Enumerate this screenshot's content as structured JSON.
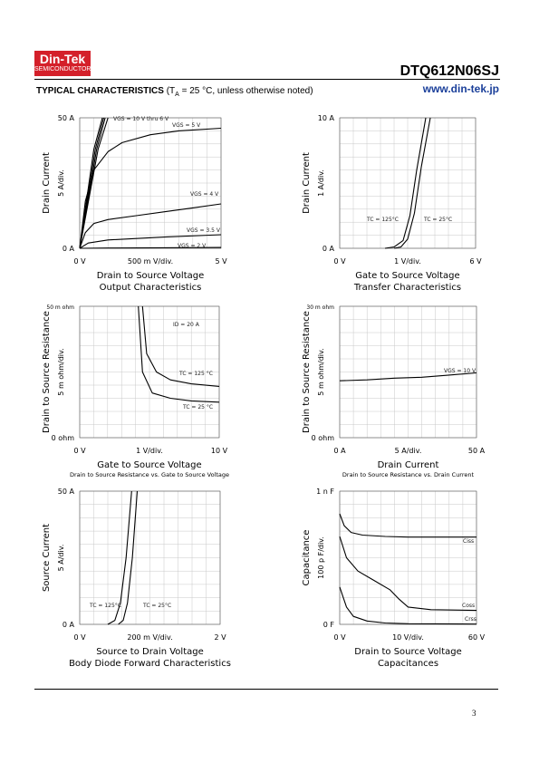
{
  "header": {
    "logo_line1": "Din-Tek",
    "logo_line2": "SEMICONDUCTOR",
    "part_number": "DTQ612N06SJ",
    "typ_bold": "TYPICAL CHARACTERISTICS",
    "typ_cond_pre": "(T",
    "typ_cond_sub": "A",
    "typ_cond_post": " = 25 °C, unless otherwise noted)",
    "website": "www.din-tek.jp"
  },
  "footer": {
    "page_number": "3"
  },
  "chart_data": [
    {
      "type": "line",
      "title": "Drain to Source Voltage",
      "subtitle": "Output Characteristics",
      "xlabel": "500 m V/div.",
      "ylabel": "Drain Current",
      "ydiv": "5 A/div.",
      "x_min_label": "0 V",
      "x_max_label": "5 V",
      "y_min_label": "0 A",
      "y_max_label": "50 A",
      "xlim": [
        0,
        5
      ],
      "ylim": [
        0,
        50
      ],
      "grid": true,
      "series": [
        {
          "name": "VGS = 10 V thru 6 V",
          "x": [
            0,
            0.5,
            0.8
          ],
          "y": [
            0,
            38,
            50
          ]
        },
        {
          "name": "",
          "x": [
            0,
            0.55,
            0.85
          ],
          "y": [
            0,
            38,
            50
          ]
        },
        {
          "name": "",
          "x": [
            0,
            0.6,
            0.9
          ],
          "y": [
            0,
            38,
            50
          ]
        },
        {
          "name": "",
          "x": [
            0,
            0.65,
            1.0
          ],
          "y": [
            0,
            38,
            50
          ]
        },
        {
          "name": "VGS = 5 V",
          "x": [
            0,
            0.2,
            0.5,
            1.0,
            1.5,
            2.5,
            3.5,
            5
          ],
          "y": [
            0,
            18,
            30,
            37,
            40.5,
            43.5,
            45,
            46
          ]
        },
        {
          "name": "VGS = 4 V",
          "x": [
            0,
            0.2,
            0.5,
            1.0,
            2.0,
            3.0,
            4.0,
            5
          ],
          "y": [
            0,
            6,
            9.5,
            11,
            12.5,
            14,
            15.5,
            17
          ]
        },
        {
          "name": "VGS = 3.5 V",
          "x": [
            0,
            0.3,
            1.0,
            3.0,
            5
          ],
          "y": [
            0,
            2,
            3.2,
            4.3,
            5.2
          ]
        },
        {
          "name": "VGS = 2 V",
          "x": [
            0,
            1.0,
            3.0,
            5
          ],
          "y": [
            0,
            0.1,
            0.2,
            0.3
          ]
        }
      ],
      "annotations": [
        "VGS = 10 V thru 6 V",
        "VGS = 5 V",
        "VGS = 4 V",
        "VGS = 3.5 V",
        "VGS = 2 V"
      ]
    },
    {
      "type": "line",
      "title": "Gate to Source Voltage",
      "subtitle": "Transfer Characteristics",
      "xlabel": "1 V/div.",
      "ylabel": "Drain Current",
      "ydiv": "1 A/div.",
      "x_min_label": "0 V",
      "x_max_label": "6 V",
      "y_min_label": "0 A",
      "y_max_label": "10 A",
      "xlim": [
        0,
        6
      ],
      "ylim": [
        0,
        10
      ],
      "grid": true,
      "series": [
        {
          "name": "TC = 125°C",
          "x": [
            2.0,
            2.4,
            2.8,
            3.1,
            3.4,
            3.8
          ],
          "y": [
            0,
            0.1,
            0.6,
            2.5,
            6,
            10
          ]
        },
        {
          "name": "TC = 25°C",
          "x": [
            2.4,
            2.7,
            3.0,
            3.3,
            3.6,
            4.0
          ],
          "y": [
            0,
            0.1,
            0.7,
            2.7,
            6.2,
            10
          ]
        }
      ],
      "annotations": [
        "TC = 125°C",
        "TC = 25°C"
      ]
    },
    {
      "type": "line",
      "title": "Gate to Source Voltage",
      "subtitle": "Drain to Source Resistance vs. Gate to Source Voltage",
      "xlabel": "1 V/div.",
      "ylabel": "Drain to Source Resistance",
      "ydiv": "5 m ohm/div.",
      "x_min_label": "0 V",
      "x_max_label": "10 V",
      "y_min_label": "0 ohm",
      "y_max_label": "50 m ohm",
      "xlim": [
        0,
        10
      ],
      "ylim": [
        0,
        50
      ],
      "grid": true,
      "series": [
        {
          "name": "TC = 125 °C",
          "x": [
            4.5,
            4.8,
            5.5,
            6.5,
            8,
            10
          ],
          "y": [
            50,
            32,
            25,
            22,
            20.5,
            19.5
          ]
        },
        {
          "name": "TC = 25 °C",
          "x": [
            4.2,
            4.5,
            5.2,
            6.5,
            8,
            10
          ],
          "y": [
            50,
            25,
            17,
            15,
            14,
            13.5
          ]
        }
      ],
      "annotations": [
        "ID = 20 A",
        "TC = 125 °C",
        "TC = 25 °C"
      ]
    },
    {
      "type": "line",
      "title": "Drain Current",
      "subtitle": "Drain to Source Resistance vs. Drain Current",
      "xlabel": "5 A/div.",
      "ylabel": "Drain to Source Resistance",
      "ydiv": "5 m ohm/div.",
      "x_min_label": "0 A",
      "x_max_label": "50 A",
      "y_min_label": "0 ohm",
      "y_max_label": "30 m ohm",
      "xlim": [
        0,
        50
      ],
      "ylim": [
        0,
        30
      ],
      "grid": true,
      "series": [
        {
          "name": "VGS = 10 V",
          "x": [
            0,
            10,
            20,
            30,
            40,
            50
          ],
          "y": [
            13,
            13.2,
            13.6,
            13.8,
            14.3,
            14.8
          ]
        }
      ],
      "annotations": [
        "VGS = 10 V"
      ]
    },
    {
      "type": "line",
      "title": "Source to Drain Voltage",
      "subtitle": "Body Diode Forward Characteristics",
      "xlabel": "200 m V/div.",
      "ylabel": "Source Current",
      "ydiv": "5 A/div.",
      "x_min_label": "0 V",
      "x_max_label": "2 V",
      "y_min_label": "0 A",
      "y_max_label": "50 A",
      "xlim": [
        0,
        2
      ],
      "ylim": [
        0,
        50
      ],
      "grid": true,
      "series": [
        {
          "name": "TC = 125°C",
          "x": [
            0.4,
            0.5,
            0.58,
            0.66,
            0.74
          ],
          "y": [
            0,
            1.5,
            8,
            25,
            50
          ]
        },
        {
          "name": "TC = 25°C",
          "x": [
            0.55,
            0.62,
            0.68,
            0.75,
            0.82
          ],
          "y": [
            0,
            1.5,
            8,
            25,
            50
          ]
        }
      ],
      "annotations": [
        "TC = 125°C",
        "TC = 25°C"
      ]
    },
    {
      "type": "line",
      "title": "Drain to Source Voltage",
      "subtitle": "Capacitances",
      "xlabel": "10 V/div.",
      "ylabel": "Capacitance",
      "ydiv": "100 p F/div.",
      "x_min_label": "0 V",
      "x_max_label": "60 V",
      "y_min_label": "0 F",
      "y_max_label": "1 n F",
      "xlim": [
        0,
        60
      ],
      "ylim": [
        0,
        1000
      ],
      "grid": true,
      "series": [
        {
          "name": "Ciss",
          "x": [
            0,
            2,
            5,
            10,
            20,
            30,
            60
          ],
          "y": [
            830,
            740,
            690,
            670,
            660,
            655,
            655
          ]
        },
        {
          "name": "Coss",
          "x": [
            0,
            3,
            8,
            15,
            22,
            26,
            30,
            40,
            60
          ],
          "y": [
            660,
            500,
            400,
            330,
            260,
            190,
            130,
            110,
            105
          ]
        },
        {
          "name": "Crss",
          "x": [
            0,
            3,
            6,
            12,
            20,
            30,
            60
          ],
          "y": [
            280,
            130,
            60,
            25,
            10,
            5,
            2
          ]
        }
      ],
      "annotations": [
        "Ciss",
        "Coss",
        "Crss"
      ]
    }
  ]
}
